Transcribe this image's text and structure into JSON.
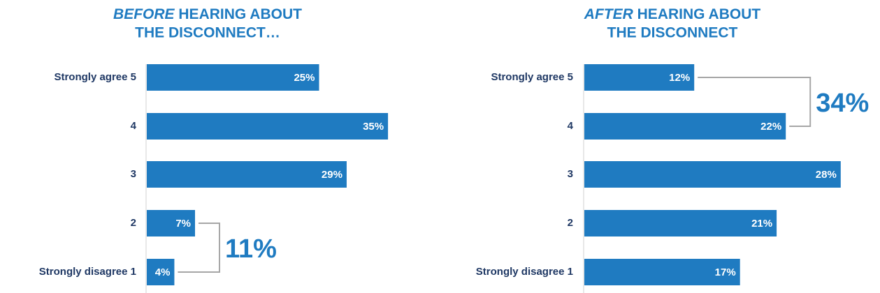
{
  "chart_data": [
    {
      "type": "bar",
      "orientation": "horizontal",
      "title_emphasis": "BEFORE",
      "title": [
        "HEARING ABOUT",
        "THE DISCONNECT…"
      ],
      "categories": [
        "Strongly agree 5",
        "4",
        "3",
        "2",
        "Strongly disagree 1"
      ],
      "values": [
        25,
        35,
        29,
        7,
        4
      ],
      "value_labels": [
        "25%",
        "35%",
        "29%",
        "7%",
        "4%"
      ],
      "color": "#1f7bc1",
      "annotation": {
        "text": "11%",
        "bracket": [
          "2",
          "Strongly disagree 1"
        ]
      }
    },
    {
      "type": "bar",
      "orientation": "horizontal",
      "title_emphasis": "AFTER",
      "title": [
        "HEARING ABOUT",
        "THE DISCONNECT"
      ],
      "categories": [
        "Strongly agree 5",
        "4",
        "3",
        "2",
        "Strongly disagree 1"
      ],
      "values": [
        12,
        22,
        28,
        21,
        17
      ],
      "value_labels": [
        "12%",
        "22%",
        "28%",
        "21%",
        "17%"
      ],
      "color": "#1f7bc1",
      "annotation": {
        "text": "34%",
        "bracket": [
          "Strongly agree 5",
          "4"
        ]
      }
    }
  ]
}
